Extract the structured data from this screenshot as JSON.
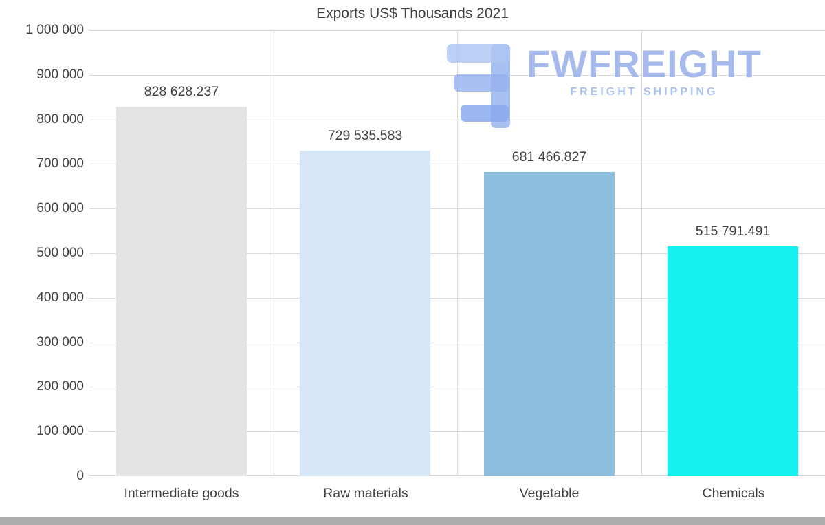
{
  "chart_data": {
    "type": "bar",
    "title": "Exports US$ Thousands 2021",
    "categories": [
      "Intermediate goods",
      "Raw materials",
      "Vegetable",
      "Chemicals"
    ],
    "values": [
      828628.237,
      729535.583,
      681466.827,
      515791.491
    ],
    "value_labels": [
      "828 628.237",
      "729 535.583",
      "681 466.827",
      "515 791.491"
    ],
    "bar_colors": [
      "#e3e4e5",
      "#d6e7f8",
      "#8cbede",
      "#12f0f0"
    ],
    "xlabel": "",
    "ylabel": "",
    "ylim": [
      0,
      1000000
    ],
    "ytick_step": 100000,
    "ytick_labels": [
      "0",
      "100 000",
      "200 000",
      "300 000",
      "400 000",
      "500 000",
      "600 000",
      "700 000",
      "800 000",
      "900 000",
      "1 000 000"
    ],
    "grid": true,
    "gridline_color": "#d9d9d9",
    "text_color": "#404040",
    "legend_position": "none"
  },
  "watermark": {
    "name": "FWFREIGHT",
    "subtitle": "FREIGHT SHIPPING",
    "color": "#9fb6ea"
  }
}
